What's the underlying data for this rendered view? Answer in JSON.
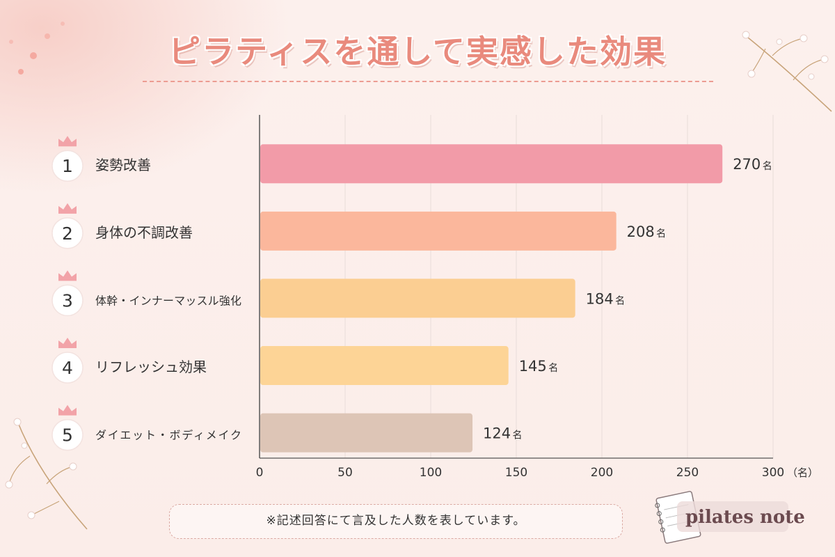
{
  "header": {
    "title": "ピラティスを通して実感した効果"
  },
  "chart_data": {
    "type": "bar",
    "orientation": "horizontal",
    "categories": [
      "姿勢改善",
      "身体の不調改善",
      "体幹・インナーマッスル強化",
      "リフレッシュ効果",
      "ダイエット・ボディメイク"
    ],
    "ranks": [
      "1",
      "2",
      "3",
      "4",
      "5"
    ],
    "values": [
      270,
      208,
      184,
      145,
      124
    ],
    "value_unit": "名",
    "bar_colors": [
      "#f29ba8",
      "#fbb79c",
      "#fbce92",
      "#fdd496",
      "#ddc5b6"
    ],
    "xlim": [
      0,
      300
    ],
    "xticks": [
      "0",
      "50",
      "100",
      "150",
      "200",
      "250",
      "300"
    ],
    "xlabel": "（名）",
    "grid": true
  },
  "footnote": "※記述回答にて言及した人数を表しています。",
  "logo": {
    "text": "pilates note"
  },
  "colors": {
    "title": "#e98a7d",
    "crown": "#f2a3a8",
    "grid": "#e9dcd9",
    "axis": "#555555"
  }
}
